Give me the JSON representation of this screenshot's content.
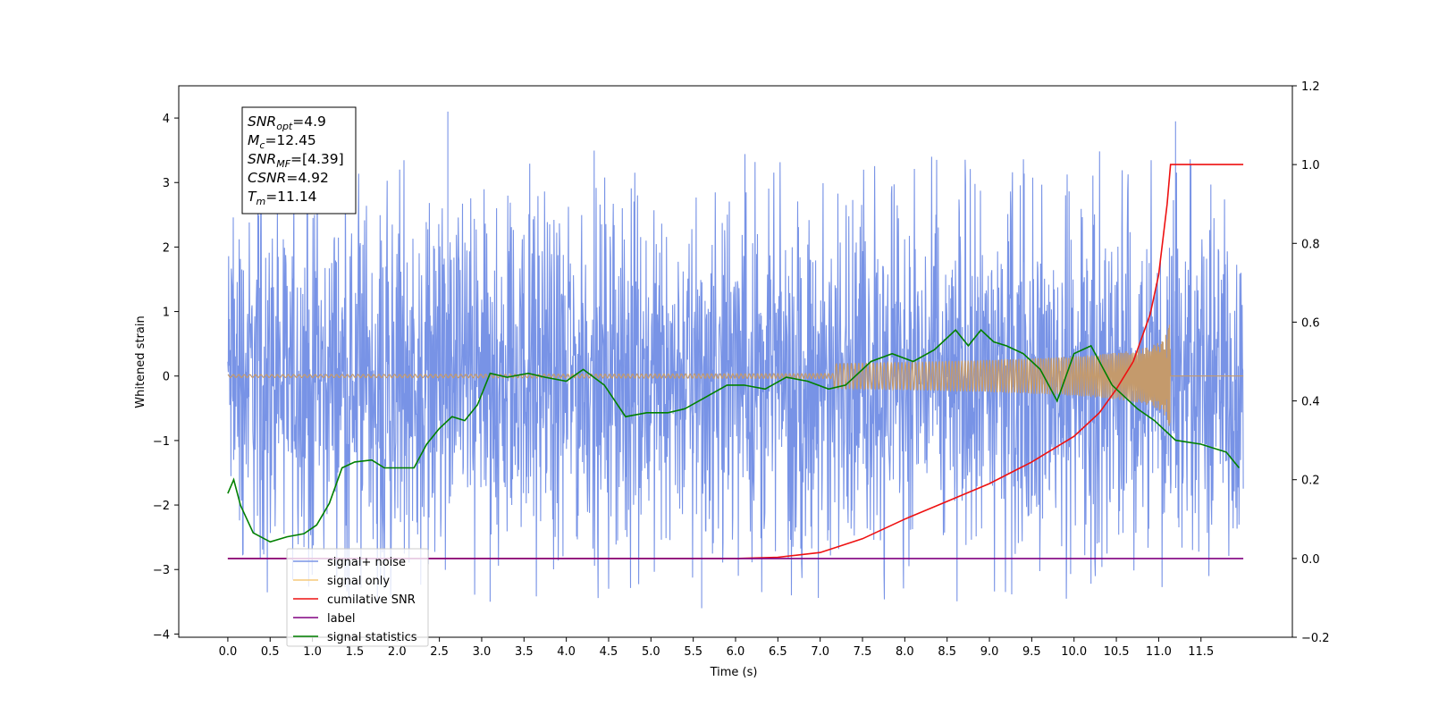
{
  "chart_data": {
    "type": "line",
    "title": "",
    "xlabel": "Time (s)",
    "ylabel": "Whitened strain",
    "xlim": [
      -0.58,
      12.58
    ],
    "ylim": [
      -4.05,
      4.5
    ],
    "y2lim": [
      -0.2,
      1.2
    ],
    "xticks": [
      "0.0",
      "0.5",
      "1.0",
      "1.5",
      "2.0",
      "2.5",
      "3.0",
      "3.5",
      "4.0",
      "4.5",
      "5.0",
      "5.5",
      "6.0",
      "6.5",
      "7.0",
      "7.5",
      "8.0",
      "8.5",
      "9.0",
      "9.5",
      "10.0",
      "10.5",
      "11.0",
      "11.5"
    ],
    "yticks": [
      "4",
      "3",
      "2",
      "1",
      "0",
      "−1",
      "−2",
      "−3",
      "−4"
    ],
    "y2ticks": [
      "1.2",
      "1.0",
      "0.8",
      "0.6",
      "0.4",
      "0.2",
      "0.0",
      "−0.2"
    ],
    "grid": false,
    "legend_position": "bottom-left",
    "info_box": [
      {
        "main": "SNR",
        "sub": "opt",
        "rest": "=4.9"
      },
      {
        "main": "M",
        "sub": "c",
        "rest": "=12.45"
      },
      {
        "main": "SNR",
        "sub": "MF",
        "rest": "=[4.39]"
      },
      {
        "main": "CSNR",
        "sub": "",
        "rest": "=4.92"
      },
      {
        "main": "T",
        "sub": "m",
        "rest": "=11.14"
      }
    ],
    "series": [
      {
        "name": "signal+ noise",
        "color": "#7893e6",
        "axis": "left",
        "noise_amplitude": 1.6,
        "peak_range": [
          -3.6,
          4.1
        ]
      },
      {
        "name": "signal only",
        "color": "#f5c97a",
        "axis": "left",
        "merger_time": 11.14,
        "peak_amplitude": 0.9
      },
      {
        "name": "cumilative SNR",
        "color": "#ee1111",
        "axis": "right",
        "x": [
          6.0,
          6.5,
          7.0,
          7.5,
          8.0,
          8.5,
          9.0,
          9.5,
          10.0,
          10.3,
          10.5,
          10.7,
          10.9,
          11.0,
          11.1,
          11.14,
          12.0
        ],
        "y": [
          0.0,
          0.003,
          0.015,
          0.05,
          0.1,
          0.145,
          0.19,
          0.245,
          0.31,
          0.37,
          0.43,
          0.5,
          0.62,
          0.72,
          0.9,
          1.0,
          1.0
        ]
      },
      {
        "name": "label",
        "color": "#800080",
        "axis": "right",
        "x": [
          0.0,
          12.0
        ],
        "y": [
          0.0,
          0.0
        ]
      },
      {
        "name": "signal statistics",
        "color": "#008000",
        "axis": "right",
        "x": [
          0.0,
          0.07,
          0.15,
          0.3,
          0.5,
          0.7,
          0.9,
          1.05,
          1.2,
          1.35,
          1.5,
          1.7,
          1.85,
          2.0,
          2.2,
          2.35,
          2.5,
          2.65,
          2.8,
          2.95,
          3.1,
          3.3,
          3.55,
          3.75,
          4.0,
          4.2,
          4.45,
          4.7,
          4.95,
          5.2,
          5.4,
          5.65,
          5.9,
          6.1,
          6.35,
          6.6,
          6.85,
          7.1,
          7.3,
          7.6,
          7.85,
          8.1,
          8.35,
          8.6,
          8.75,
          8.9,
          9.05,
          9.2,
          9.4,
          9.6,
          9.8,
          10.0,
          10.2,
          10.45,
          10.75,
          10.95,
          11.2,
          11.5,
          11.8,
          11.95
        ],
        "y": [
          0.165,
          0.2,
          0.135,
          0.065,
          0.042,
          0.055,
          0.063,
          0.085,
          0.14,
          0.23,
          0.245,
          0.25,
          0.23,
          0.23,
          0.23,
          0.29,
          0.33,
          0.36,
          0.35,
          0.39,
          0.47,
          0.46,
          0.47,
          0.46,
          0.45,
          0.48,
          0.44,
          0.36,
          0.37,
          0.37,
          0.38,
          0.41,
          0.44,
          0.44,
          0.43,
          0.46,
          0.45,
          0.43,
          0.44,
          0.5,
          0.52,
          0.5,
          0.53,
          0.58,
          0.54,
          0.58,
          0.55,
          0.54,
          0.52,
          0.48,
          0.4,
          0.52,
          0.54,
          0.44,
          0.38,
          0.35,
          0.3,
          0.29,
          0.27,
          0.23
        ]
      }
    ]
  }
}
